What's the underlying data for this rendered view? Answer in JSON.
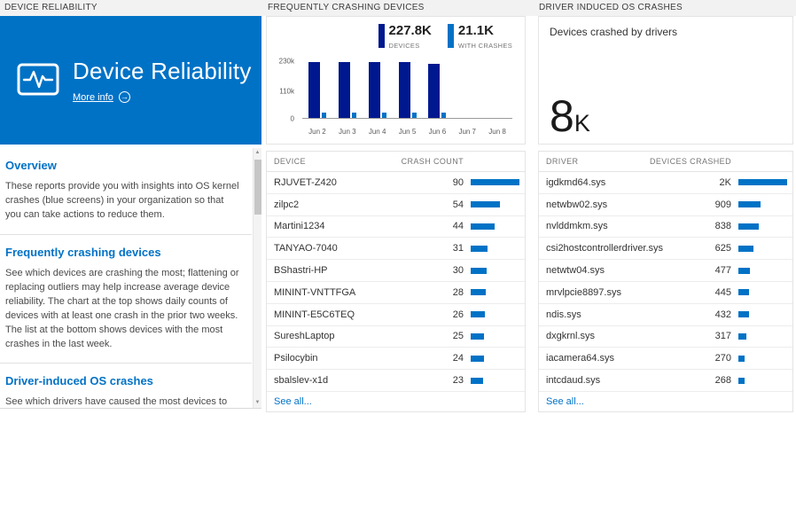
{
  "colors": {
    "accent": "#0072c6",
    "navy": "#00188f",
    "band_bg": "#f2f2f2",
    "text": "#333333",
    "border": "#e4e4e4"
  },
  "sections": {
    "left": "DEVICE RELIABILITY",
    "middle": "FREQUENTLY CRASHING DEVICES",
    "right": "DRIVER INDUCED OS CRASHES"
  },
  "tile": {
    "title": "Device Reliability",
    "more_info": "More info"
  },
  "overview": {
    "sections": [
      {
        "heading": "Overview",
        "body": "These reports provide you with insights into OS kernel crashes (blue screens) in your organization so that you can take actions to reduce them."
      },
      {
        "heading": "Frequently crashing devices",
        "body": "See which devices are crashing the most; flattening or replacing outliers may help increase average device reliability. The chart at the top shows daily counts of devices with at least one crash in the prior two weeks. The list at the bottom shows devices with the most crashes in the last week."
      },
      {
        "heading": "Driver-induced OS crashes",
        "body": "See which drivers have caused the most devices to crash in the last two weeks; upgrading or replacing these drivers"
      }
    ]
  },
  "chart_data": {
    "type": "bar",
    "title": "Frequently crashing devices",
    "legend": [
      {
        "value": "227.8K",
        "label": "DEVICES",
        "color": "#00188f"
      },
      {
        "value": "21.1K",
        "label": "WITH CRASHES",
        "color": "#0072c6"
      }
    ],
    "categories": [
      "Jun 2",
      "Jun 3",
      "Jun 4",
      "Jun 5",
      "Jun 6",
      "Jun 7",
      "Jun 8"
    ],
    "series": [
      {
        "name": "Devices",
        "values": [
          226000,
          227000,
          227800,
          227000,
          219000,
          null,
          null
        ]
      },
      {
        "name": "With crashes",
        "values": [
          21100,
          21100,
          21100,
          21100,
          21100,
          null,
          null
        ]
      }
    ],
    "yticks": [
      {
        "label": "230k",
        "value": 230000
      },
      {
        "label": "110k",
        "value": 110000
      },
      {
        "label": "0",
        "value": 0
      }
    ],
    "ylim": [
      0,
      230000
    ],
    "grid": false,
    "legend_position": "top-right"
  },
  "device_table": {
    "columns": [
      "DEVICE",
      "CRASH COUNT"
    ],
    "rows": [
      {
        "name": "RJUVET-Z420",
        "label": "90",
        "count": 90
      },
      {
        "name": "zilpc2",
        "label": "54",
        "count": 54
      },
      {
        "name": "Martini1234",
        "label": "44",
        "count": 44
      },
      {
        "name": "TANYAO-7040",
        "label": "31",
        "count": 31
      },
      {
        "name": "BShastri-HP",
        "label": "30",
        "count": 30
      },
      {
        "name": "MININT-VNTTFGA",
        "label": "28",
        "count": 28
      },
      {
        "name": "MININT-E5C6TEQ",
        "label": "26",
        "count": 26
      },
      {
        "name": "SureshLaptop",
        "label": "25",
        "count": 25
      },
      {
        "name": "Psilocybin",
        "label": "24",
        "count": 24
      },
      {
        "name": "sbalslev-x1d",
        "label": "23",
        "count": 23
      }
    ],
    "see_all": "See all..."
  },
  "driver_card": {
    "subtitle": "Devices crashed by drivers",
    "value": "8",
    "unit": "K"
  },
  "driver_table": {
    "columns": [
      "DRIVER",
      "DEVICES CRASHED"
    ],
    "rows": [
      {
        "name": "igdkmd64.sys",
        "label": "2K",
        "count": 2000
      },
      {
        "name": "netwbw02.sys",
        "label": "909",
        "count": 909
      },
      {
        "name": "nvlddmkm.sys",
        "label": "838",
        "count": 838
      },
      {
        "name": "csi2hostcontrollerdriver.sys",
        "label": "625",
        "count": 625
      },
      {
        "name": "netwtw04.sys",
        "label": "477",
        "count": 477
      },
      {
        "name": "mrvlpcie8897.sys",
        "label": "445",
        "count": 445
      },
      {
        "name": "ndis.sys",
        "label": "432",
        "count": 432
      },
      {
        "name": "dxgkrnl.sys",
        "label": "317",
        "count": 317
      },
      {
        "name": "iacamera64.sys",
        "label": "270",
        "count": 270
      },
      {
        "name": "intcdaud.sys",
        "label": "268",
        "count": 268
      }
    ],
    "see_all": "See all..."
  }
}
